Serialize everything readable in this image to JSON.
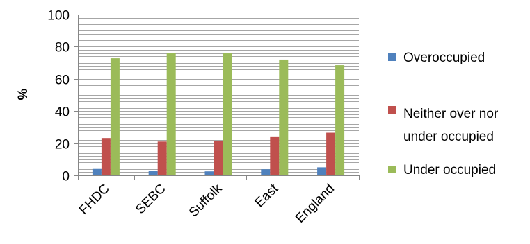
{
  "chart_data": {
    "type": "bar",
    "title": "",
    "xlabel": "",
    "ylabel": "%",
    "ylim": [
      0,
      100
    ],
    "yticks": [
      0,
      20,
      40,
      60,
      80,
      100
    ],
    "minor_gridline_step": 2,
    "grid": true,
    "categories": [
      "FHDC",
      "SEBC",
      "Suffolk",
      "East",
      "England"
    ],
    "series": [
      {
        "name": "Overoccupied",
        "color": "#4F81BD",
        "values": [
          4,
          3,
          2.5,
          3.8,
          5
        ]
      },
      {
        "name": "Neither over nor under occupied",
        "color": "#C0504D",
        "values": [
          23.2,
          21,
          21.2,
          24.2,
          26.5
        ]
      },
      {
        "name": "Under occupied",
        "color": "#9BBB59",
        "values": [
          72.8,
          76,
          76.3,
          72,
          68.5
        ]
      }
    ],
    "legend": {
      "placement": "right",
      "entries": [
        {
          "lines": [
            "Overoccupied"
          ]
        },
        {
          "lines": [
            "Neither over nor",
            "under occupied"
          ]
        },
        {
          "lines": [
            "Under occupied"
          ]
        }
      ]
    }
  }
}
